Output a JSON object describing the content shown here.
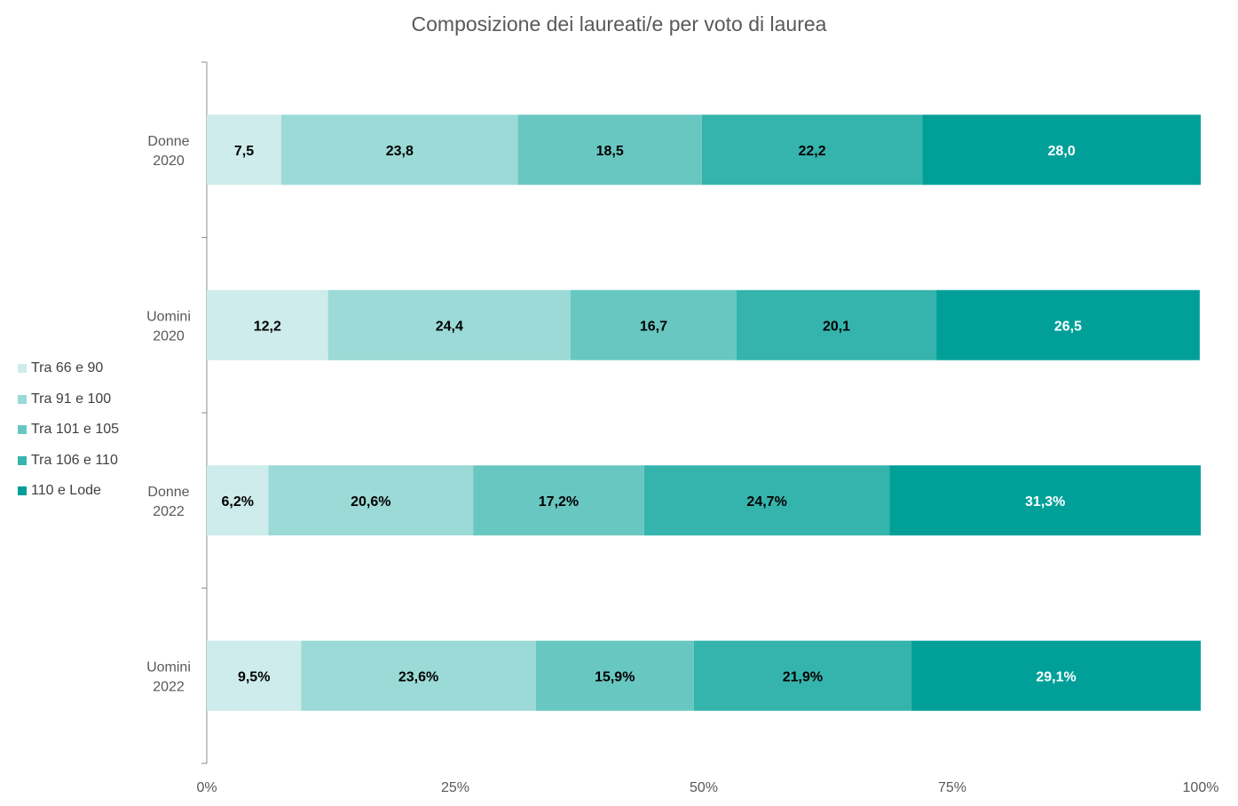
{
  "chart_data": {
    "type": "bar",
    "orientation": "horizontal",
    "stacked": "percent",
    "title": "Composizione dei laureati/e per voto di laurea",
    "categories": [
      [
        "Donne",
        "2020"
      ],
      [
        "Uomini",
        "2020"
      ],
      [
        "Donne",
        "2022"
      ],
      [
        "Uomini",
        "2022"
      ]
    ],
    "series": [
      {
        "name": "Tra 66 e 90",
        "color": "#cdeceb",
        "values": [
          7.5,
          12.2,
          6.2,
          9.5
        ],
        "labels": [
          "7,5",
          "12,2",
          "6,2%",
          "9,5%"
        ]
      },
      {
        "name": "Tra 91 e 100",
        "color": "#9bdad6",
        "values": [
          23.8,
          24.4,
          20.6,
          23.6
        ],
        "labels": [
          "23,8",
          "24,4",
          "20,6%",
          "23,6%"
        ]
      },
      {
        "name": "Tra 101 e 105",
        "color": "#68c7c1",
        "values": [
          18.5,
          16.7,
          17.2,
          15.9
        ],
        "labels": [
          "18,5",
          "16,7",
          "17,2%",
          "15,9%"
        ]
      },
      {
        "name": "Tra 106 e 110",
        "color": "#35b4ad",
        "values": [
          22.2,
          20.1,
          24.7,
          21.9
        ],
        "labels": [
          "22,2",
          "20,1",
          "24,7%",
          "21,9%"
        ]
      },
      {
        "name": "110 e Lode",
        "color": "#00a099",
        "values": [
          28.0,
          26.5,
          31.3,
          29.1
        ],
        "labels": [
          "28,0",
          "26,5",
          "31,3%",
          "29,1%"
        ]
      }
    ],
    "label_colors": [
      "#000000",
      "#000000",
      "#000000",
      "#000000",
      "#ffffff"
    ],
    "xlim": [
      0,
      100
    ],
    "x_ticks": [
      0,
      25,
      50,
      75,
      100
    ],
    "x_tick_labels": [
      "0%",
      "25%",
      "50%",
      "75%",
      "100%"
    ],
    "grid": false,
    "legend_position": "left"
  }
}
